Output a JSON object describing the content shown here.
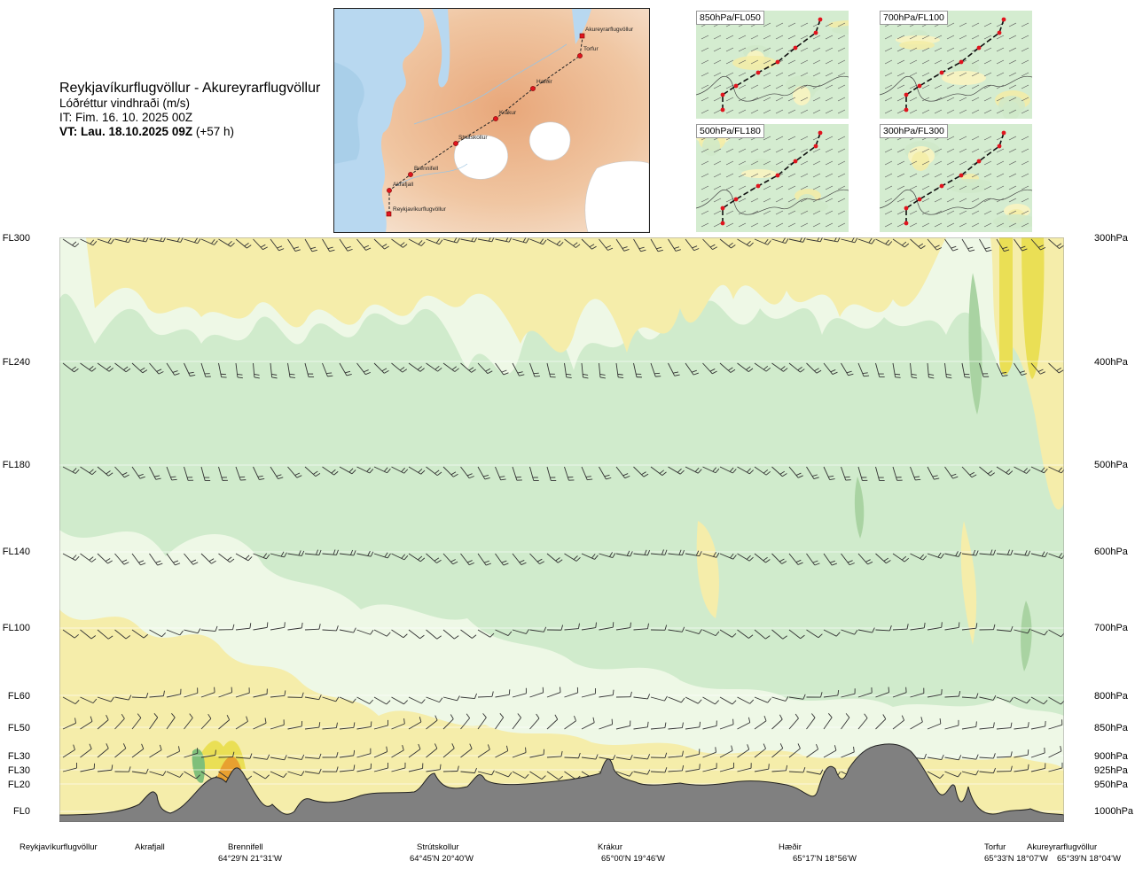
{
  "header": {
    "route_title": "Reykjavíkurflugvöllur - Akureyrarflugvöllur",
    "parameter": "Lóðréttur vindhraði (m/s)",
    "issue_time": "IT: Fim. 16. 10. 2025 00Z",
    "valid_time_label": "VT: Lau. 18.10.2025 09Z",
    "valid_time_offset": "(+57 h)"
  },
  "route_map": {
    "places": [
      {
        "name": "Akureyrarflugvöllur"
      },
      {
        "name": "Torfur"
      },
      {
        "name": "Hæðir"
      },
      {
        "name": "Krákur"
      },
      {
        "name": "Strútskollur"
      },
      {
        "name": "Brennifell"
      },
      {
        "name": "Akrafjall"
      },
      {
        "name": "Reykjavíkurflugvöllur"
      }
    ],
    "colors": {
      "sea": "#b8d8f0",
      "land_low": "#f3d9c3",
      "land_high": "#e7a679",
      "ice": "#ffffff",
      "route": "#222222",
      "point": "#e0141e"
    }
  },
  "level_maps": [
    {
      "label": "850hPa/FL050"
    },
    {
      "label": "700hPa/FL100"
    },
    {
      "label": "500hPa/FL180"
    },
    {
      "label": "300hPa/FL300"
    }
  ],
  "cross_section": {
    "fl_levels": [
      "FL300",
      "FL240",
      "FL180",
      "FL140",
      "FL100",
      "FL60",
      "FL50",
      "FL30",
      "FL30",
      "FL20",
      "FL0"
    ],
    "pressure_levels": [
      "300hPa",
      "400hPa",
      "500hPa",
      "600hPa",
      "700hPa",
      "800hPa",
      "850hPa",
      "900hPa",
      "925hPa",
      "950hPa",
      "1000hPa"
    ],
    "waypoints": [
      {
        "name": "Reykjavíkurflugvöllur",
        "coord": ""
      },
      {
        "name": "Akrafjall",
        "coord": ""
      },
      {
        "name": "Brennifell",
        "coord": "64°29'N 21°31'W"
      },
      {
        "name": "Strútskollur",
        "coord": "64°45'N 20°40'W"
      },
      {
        "name": "Krákur",
        "coord": "65°00'N 19°46'W"
      },
      {
        "name": "Hæðir",
        "coord": "65°17'N 18°56'W"
      },
      {
        "name": "Torfur",
        "coord": "65°33'N 18°07'W"
      },
      {
        "name": "Akureyrarflugvöllur",
        "coord": "65°39'N 18°04'W"
      }
    ],
    "colors": {
      "neutral_green": "#d0ebcc",
      "pale": "#eef8e6",
      "light_yellow": "#f5edaa",
      "yellow": "#eadf55",
      "orange": "#e8a030",
      "red": "#e05a10",
      "down_green": "#a9d3a2",
      "deep_green": "#7fbf7a",
      "terrain": "#808080"
    }
  }
}
